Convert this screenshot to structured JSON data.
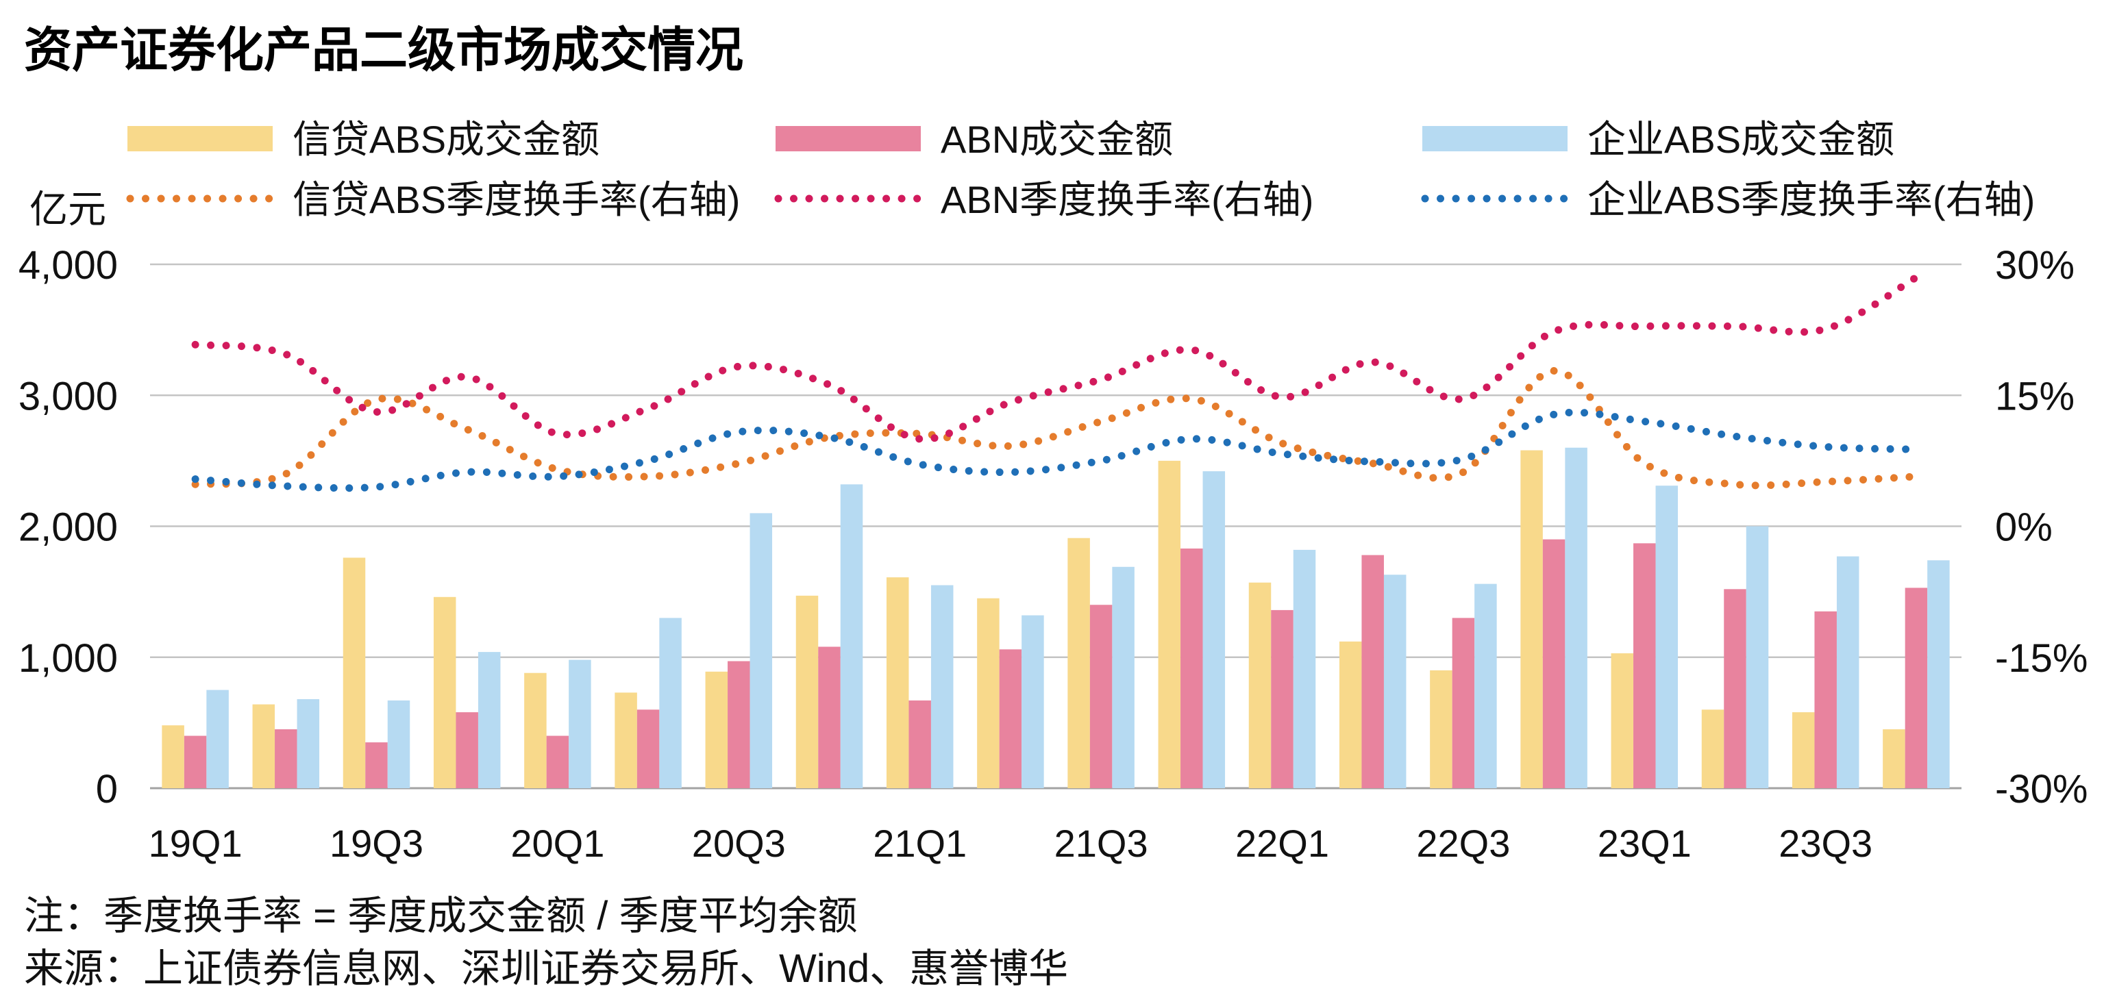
{
  "footer": {
    "note": "注：季度换手率 = 季度成交金额 / 季度平均余额",
    "source": "来源：上证债券信息网、深圳证券交易所、Wind、惠誉博华"
  },
  "chart_data": {
    "type": "bar",
    "title": "资产证券化产品二级市场成交情况",
    "ylabel": "亿元",
    "categories": [
      "19Q1",
      "",
      "19Q3",
      "",
      "20Q1",
      "",
      "20Q3",
      "",
      "21Q1",
      "",
      "21Q3",
      "",
      "22Q1",
      "",
      "22Q3",
      "",
      "23Q1",
      "",
      "23Q3",
      ""
    ],
    "y_left": {
      "range": [
        0,
        4000
      ],
      "ticks": [
        0,
        1000,
        2000,
        3000,
        4000
      ],
      "tick_labels": [
        "0",
        "1,000",
        "2,000",
        "3,000",
        "4,000"
      ]
    },
    "y_right": {
      "range": [
        -30,
        30
      ],
      "ticks": [
        -30,
        -15,
        0,
        15,
        30
      ],
      "tick_labels": [
        "-30%",
        "-15%",
        "0%",
        "15%",
        "30%"
      ]
    },
    "grid": "horizontal",
    "legend_position": "top",
    "series": [
      {
        "name": "信贷ABS成交金额",
        "type": "bar",
        "axis": "left",
        "color": "#F8D98B",
        "values": [
          480,
          640,
          1760,
          1460,
          880,
          730,
          890,
          1470,
          1610,
          1450,
          1910,
          2500,
          1570,
          1120,
          900,
          2580,
          1030,
          600,
          580,
          450
        ]
      },
      {
        "name": "ABN成交金额",
        "type": "bar",
        "axis": "left",
        "color": "#E8839E",
        "values": [
          400,
          450,
          350,
          580,
          400,
          600,
          970,
          1080,
          670,
          1060,
          1400,
          1830,
          1360,
          1780,
          1300,
          1900,
          1870,
          1520,
          1350,
          1530
        ]
      },
      {
        "name": "企业ABS成交金额",
        "type": "bar",
        "axis": "left",
        "color": "#B6DAF2",
        "values": [
          750,
          680,
          670,
          1040,
          980,
          1300,
          2100,
          2320,
          1550,
          1320,
          1690,
          2420,
          1820,
          1630,
          1560,
          2600,
          2310,
          2000,
          1770,
          1740
        ]
      },
      {
        "name": "信贷ABS季度换手率(右轴)",
        "type": "line",
        "style": "dotted",
        "axis": "right",
        "color": "#E57C2C",
        "values": [
          4.8,
          6.0,
          14.5,
          11.1,
          6.5,
          5.7,
          7.2,
          10.2,
          10.6,
          9.2,
          12.0,
          14.6,
          9.5,
          7.2,
          6.2,
          17.8,
          7.2,
          4.8,
          5.1,
          5.7
        ]
      },
      {
        "name": "ABN季度换手率(右轴)",
        "type": "line",
        "style": "dotted",
        "axis": "right",
        "color": "#D21A5C",
        "values": [
          20.8,
          19.7,
          13.1,
          17.1,
          10.6,
          13.5,
          18.3,
          16.2,
          10.0,
          14.2,
          16.8,
          20.2,
          14.8,
          18.8,
          14.6,
          22.3,
          22.9,
          22.9,
          22.6,
          28.5
        ]
      },
      {
        "name": "企业ABS季度换手率(右轴)",
        "type": "line",
        "style": "dotted",
        "axis": "right",
        "color": "#1F6FB7",
        "values": [
          5.4,
          4.6,
          4.5,
          6.2,
          5.7,
          7.5,
          10.8,
          10.2,
          7.1,
          6.2,
          7.5,
          10.0,
          8.3,
          7.4,
          7.7,
          12.8,
          12.0,
          10.3,
          9.1,
          8.8
        ]
      }
    ]
  }
}
